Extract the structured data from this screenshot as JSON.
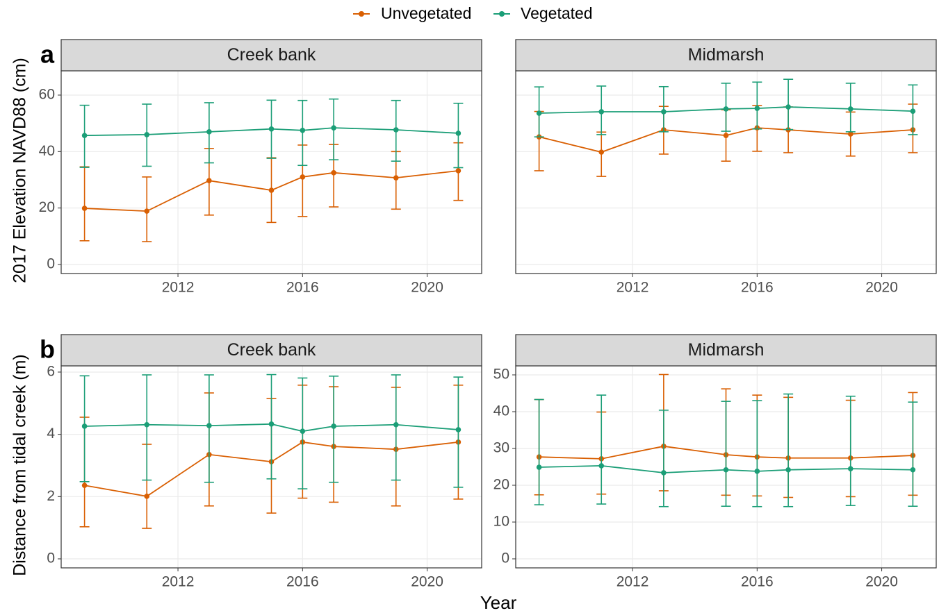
{
  "xlabel": "Year",
  "chart_data": [
    {
      "type": "line",
      "title": "Creek bank",
      "panel_label": "a",
      "ylabel": "2017 Elevation NAVD88 (cm)",
      "x": [
        2009,
        2011,
        2013,
        2015,
        2016,
        2017,
        2019,
        2021
      ],
      "xlim": [
        2008.25,
        2021.75
      ],
      "xticks": [
        2012,
        2016,
        2020
      ],
      "ylim": [
        -3.2,
        68.6
      ],
      "yticks": [
        0,
        20,
        40,
        60
      ],
      "grid": true,
      "series": [
        {
          "name": "Unvegetated",
          "color": "#d95f02",
          "values": [
            19.9,
            18.9,
            29.7,
            26.3,
            31.0,
            32.5,
            30.7,
            33.2
          ],
          "lower": [
            8.4,
            8.1,
            17.5,
            14.9,
            17.0,
            20.4,
            19.6,
            22.7
          ],
          "upper": [
            34.6,
            31.0,
            41.1,
            37.8,
            42.3,
            42.5,
            40.0,
            43.1
          ]
        },
        {
          "name": "Vegetated",
          "color": "#1b9e77",
          "values": [
            45.7,
            46.0,
            47.0,
            48.0,
            47.5,
            48.4,
            47.7,
            46.5
          ],
          "lower": [
            34.4,
            34.8,
            36.0,
            37.6,
            35.1,
            37.1,
            36.6,
            34.3
          ],
          "upper": [
            56.4,
            56.8,
            57.3,
            58.2,
            58.1,
            58.6,
            58.1,
            57.1
          ]
        }
      ]
    },
    {
      "type": "line",
      "title": "Midmarsh",
      "x": [
        2009,
        2011,
        2013,
        2015,
        2016,
        2017,
        2019,
        2021
      ],
      "xlim": [
        2008.25,
        2021.75
      ],
      "xticks": [
        2012,
        2016,
        2020
      ],
      "ylim": [
        -3.2,
        68.6
      ],
      "grid": true,
      "series": [
        {
          "name": "Unvegetated",
          "color": "#d95f02",
          "values": [
            45.2,
            39.8,
            47.7,
            45.7,
            48.4,
            47.7,
            46.2,
            47.7
          ],
          "lower": [
            33.2,
            31.2,
            39.1,
            36.6,
            40.1,
            39.6,
            38.4,
            39.6
          ],
          "upper": [
            54.2,
            46.9,
            56.0,
            54.8,
            56.3,
            55.8,
            54.0,
            56.8
          ]
        },
        {
          "name": "Vegetated",
          "color": "#1b9e77",
          "values": [
            53.6,
            54.1,
            54.1,
            55.1,
            55.3,
            55.8,
            55.1,
            54.3
          ],
          "lower": [
            45.2,
            46.0,
            47.0,
            47.2,
            48.0,
            47.8,
            47.0,
            46.0
          ],
          "upper": [
            62.9,
            63.2,
            63.0,
            64.2,
            64.6,
            65.6,
            64.2,
            63.6
          ]
        }
      ]
    },
    {
      "type": "line",
      "title": "Creek bank",
      "panel_label": "b",
      "ylabel": "Distance from tidal creek (m)",
      "x": [
        2009,
        2011,
        2013,
        2015,
        2016,
        2017,
        2019,
        2021
      ],
      "xlim": [
        2008.25,
        2021.75
      ],
      "xticks": [
        2012,
        2016,
        2020
      ],
      "ylim": [
        -0.29,
        6.2
      ],
      "yticks": [
        0,
        2,
        4,
        6
      ],
      "grid": true,
      "series": [
        {
          "name": "Unvegetated",
          "color": "#d95f02",
          "values": [
            2.36,
            2.01,
            3.35,
            3.12,
            3.75,
            3.61,
            3.52,
            3.75
          ],
          "lower": [
            1.03,
            0.98,
            1.7,
            1.47,
            1.95,
            1.82,
            1.7,
            1.92
          ],
          "upper": [
            4.55,
            3.68,
            5.33,
            5.15,
            5.58,
            5.53,
            5.51,
            5.58
          ]
        },
        {
          "name": "Vegetated",
          "color": "#1b9e77",
          "values": [
            4.26,
            4.31,
            4.28,
            4.33,
            4.1,
            4.26,
            4.31,
            4.15
          ],
          "lower": [
            2.48,
            2.53,
            2.46,
            2.57,
            2.25,
            2.46,
            2.53,
            2.3
          ],
          "upper": [
            5.88,
            5.91,
            5.91,
            5.92,
            5.81,
            5.87,
            5.91,
            5.84
          ]
        }
      ]
    },
    {
      "type": "line",
      "title": "Midmarsh",
      "x": [
        2009,
        2011,
        2013,
        2015,
        2016,
        2017,
        2019,
        2021
      ],
      "xlim": [
        2008.25,
        2021.75
      ],
      "xticks": [
        2012,
        2016,
        2020
      ],
      "ylim": [
        -2.45,
        52.45
      ],
      "yticks": [
        0,
        10,
        20,
        30,
        40,
        50
      ],
      "grid": true,
      "series": [
        {
          "name": "Unvegetated",
          "color": "#d95f02",
          "values": [
            27.7,
            27.2,
            30.6,
            28.3,
            27.7,
            27.4,
            27.4,
            28.1
          ],
          "lower": [
            17.4,
            17.6,
            18.5,
            17.3,
            17.1,
            16.7,
            16.9,
            17.3
          ],
          "upper": [
            43.3,
            39.9,
            50.1,
            46.2,
            44.5,
            43.9,
            43.1,
            45.2
          ]
        },
        {
          "name": "Vegetated",
          "color": "#1b9e77",
          "values": [
            24.9,
            25.3,
            23.4,
            24.2,
            23.8,
            24.2,
            24.5,
            24.2
          ],
          "lower": [
            14.7,
            14.9,
            14.2,
            14.3,
            14.2,
            14.2,
            14.5,
            14.3
          ],
          "upper": [
            43.3,
            44.5,
            40.4,
            42.8,
            43.0,
            44.8,
            44.2,
            42.6
          ]
        }
      ]
    }
  ]
}
